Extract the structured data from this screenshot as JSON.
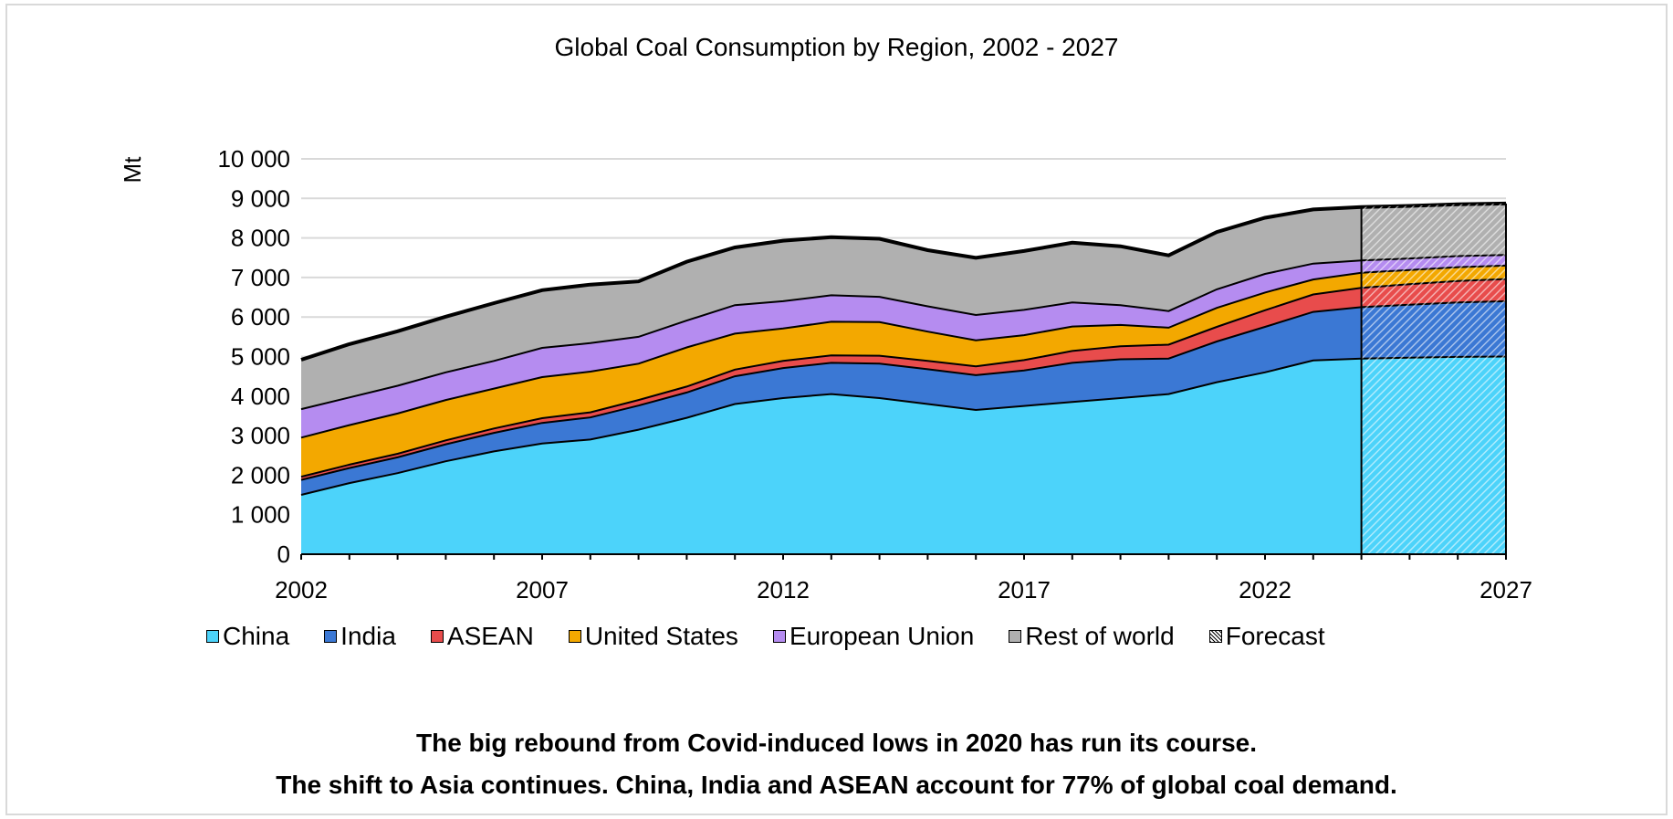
{
  "chart_data": {
    "type": "area",
    "title": "Global Coal Consumption by Region, 2002 - 2027",
    "ylabel": "Mt",
    "xlabel": "",
    "ylim": [
      0,
      10000
    ],
    "yticks": [
      0,
      1000,
      2000,
      3000,
      4000,
      5000,
      6000,
      7000,
      8000,
      9000,
      10000
    ],
    "ytick_labels": [
      "0",
      "1 000",
      "2 000",
      "3 000",
      "4 000",
      "5 000",
      "6 000",
      "7 000",
      "8 000",
      "9 000",
      "10 000"
    ],
    "xlim": [
      2002,
      2027
    ],
    "xtick_labels": [
      "2002",
      "2007",
      "2012",
      "2017",
      "2022",
      "2027"
    ],
    "grid": true,
    "legend_position": "bottom",
    "stacked": true,
    "forecast_start": 2024,
    "x": [
      2002,
      2003,
      2004,
      2005,
      2006,
      2007,
      2008,
      2009,
      2010,
      2011,
      2012,
      2013,
      2014,
      2015,
      2016,
      2017,
      2018,
      2019,
      2020,
      2021,
      2022,
      2023,
      2024,
      2025,
      2026,
      2027
    ],
    "series": [
      {
        "name": "China",
        "color": "#4cd3fa",
        "values": [
          1500,
          1800,
          2050,
          2350,
          2600,
          2800,
          2900,
          3150,
          3450,
          3800,
          3950,
          4050,
          3950,
          3800,
          3650,
          3750,
          3850,
          3950,
          4050,
          4350,
          4600,
          4900,
          4950,
          4970,
          4990,
          5000
        ]
      },
      {
        "name": "India",
        "color": "#3b78d4",
        "values": [
          380,
          380,
          400,
          430,
          470,
          520,
          560,
          610,
          640,
          700,
          760,
          790,
          870,
          880,
          880,
          900,
          990,
          980,
          900,
          1030,
          1150,
          1230,
          1300,
          1340,
          1380,
          1400
        ]
      },
      {
        "name": "ASEAN",
        "color": "#e84c4c",
        "values": [
          80,
          85,
          90,
          100,
          110,
          120,
          130,
          140,
          150,
          170,
          180,
          190,
          200,
          210,
          220,
          260,
          300,
          330,
          350,
          370,
          420,
          440,
          490,
          520,
          540,
          560
        ]
      },
      {
        "name": "United States",
        "color": "#f3a800",
        "values": [
          990,
          1000,
          1020,
          1020,
          1010,
          1040,
          1030,
          920,
          990,
          910,
          820,
          850,
          850,
          740,
          660,
          630,
          620,
          540,
          430,
          480,
          450,
          380,
          380,
          360,
          350,
          340
        ]
      },
      {
        "name": "European Union",
        "color": "#b58cf0",
        "values": [
          720,
          700,
          700,
          700,
          700,
          740,
          720,
          680,
          680,
          720,
          690,
          670,
          640,
          640,
          640,
          640,
          610,
          500,
          420,
          470,
          470,
          400,
          310,
          290,
          280,
          270
        ]
      },
      {
        "name": "Rest of world",
        "color": "#b0b0b0",
        "values": [
          1250,
          1350,
          1380,
          1410,
          1460,
          1460,
          1480,
          1400,
          1490,
          1460,
          1530,
          1470,
          1470,
          1420,
          1450,
          1490,
          1510,
          1490,
          1410,
          1450,
          1420,
          1370,
          1350,
          1330,
          1310,
          1300
        ]
      }
    ],
    "forecast_label": "Forecast"
  },
  "captions": {
    "line1": "The big rebound from Covid-induced lows in 2020 has run its course.",
    "line2": "The shift to Asia continues.  China, India and ASEAN account for 77% of global coal demand."
  }
}
